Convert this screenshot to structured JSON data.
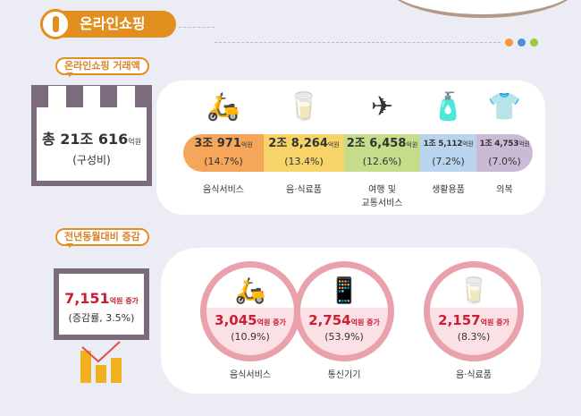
{
  "section_title": "온라인쇼핑",
  "section_number": "1",
  "accent_colors": [
    "#f09a3a",
    "#4e8fd9",
    "#9acb3c"
  ],
  "transactions": {
    "bubble": "온라인쇼핑 거래액",
    "total": {
      "value": "총 21조 616",
      "unit": "억원",
      "sub": "(구성비)"
    },
    "segments": [
      {
        "value": "3조 971",
        "unit": "억원",
        "pct": "(14.7%)",
        "label": "음식서비스",
        "icon": "delivery-scooter-icon",
        "color": "#f5a65a"
      },
      {
        "value": "2조 8,264",
        "unit": "억원",
        "pct": "(13.4%)",
        "label": "음·식료품",
        "icon": "milk-bread-icon",
        "color": "#f6d46a"
      },
      {
        "value": "2조 6,458",
        "unit": "억원",
        "pct": "(12.6%)",
        "label": "여행 및\n교통서비스",
        "icon": "airplane-calendar-icon",
        "color": "#c5dc8a"
      },
      {
        "value": "1조 5,112",
        "unit": "억원",
        "pct": "(7.2%)",
        "label": "생활용품",
        "icon": "toiletries-icon",
        "color": "#b9d4ec"
      },
      {
        "value": "1조 4,753",
        "unit": "억원",
        "pct": "(7.0%)",
        "label": "의복",
        "icon": "tshirt-icon",
        "color": "#cbbad6"
      }
    ]
  },
  "yoy": {
    "bubble": "전년동월대비 증감",
    "total": {
      "value": "7,151",
      "unit": "억원 증가",
      "sub": "(증감률, 3.5%)"
    },
    "items": [
      {
        "value": "3,045",
        "unit": "억원 증가",
        "pct": "(10.9%)",
        "label": "음식서비스",
        "icon": "delivery-scooter-icon"
      },
      {
        "value": "2,754",
        "unit": "억원 증가",
        "pct": "(53.9%)",
        "label": "통신기기",
        "icon": "smartphone-icon"
      },
      {
        "value": "2,157",
        "unit": "억원 증가",
        "pct": "(8.3%)",
        "label": "음·식료품",
        "icon": "milk-bread-icon"
      }
    ]
  }
}
